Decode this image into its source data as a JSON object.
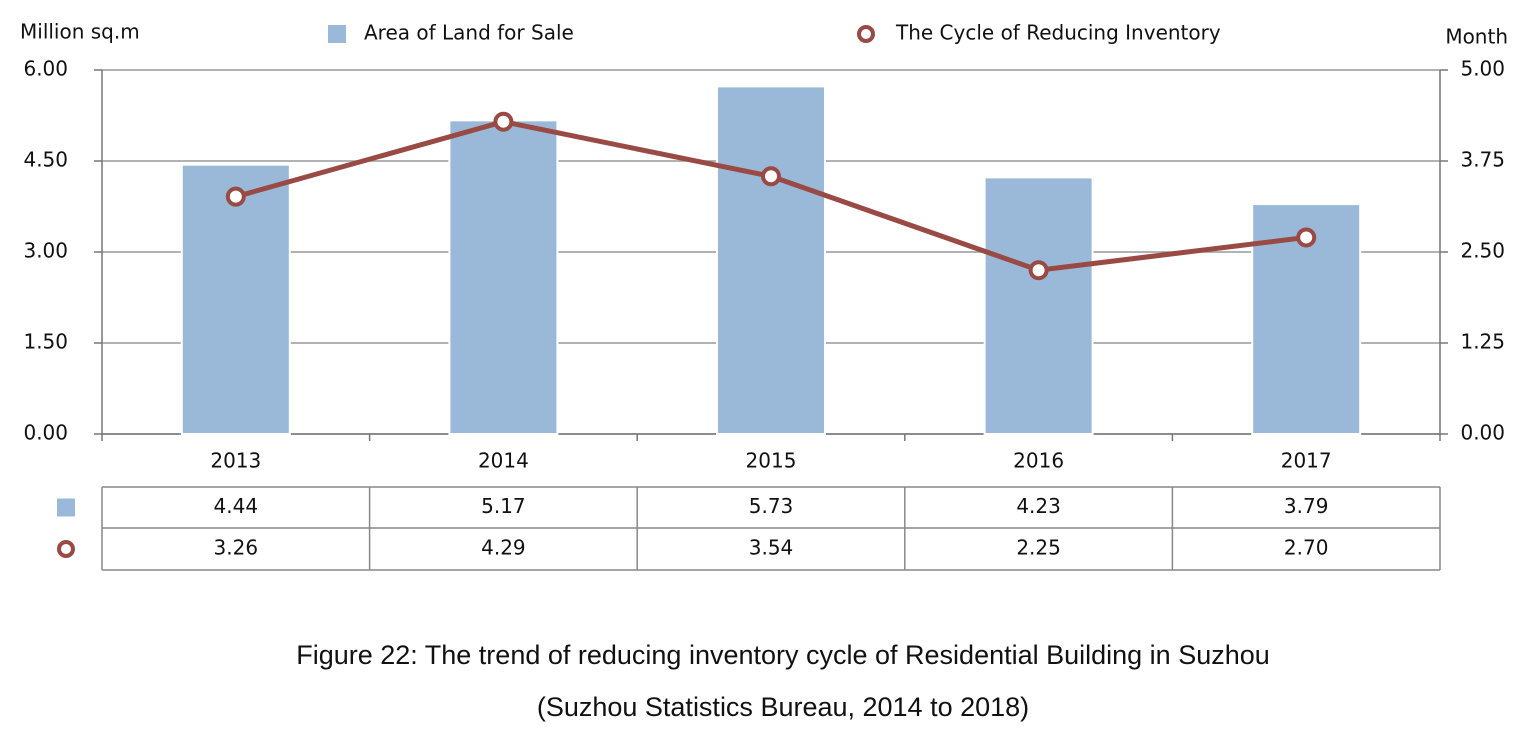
{
  "chart_data": {
    "type": "bar",
    "title": "Figure 22: The trend of reducing inventory cycle of Residential Building in Suzhou",
    "subtitle": "(Suzhou Statistics Bureau, 2014 to 2018)",
    "ylabel": "Million sq.m",
    "y2label": "Month",
    "categories": [
      "2013",
      "2014",
      "2015",
      "2016",
      "2017"
    ],
    "series": [
      {
        "name": "Area of Land for Sale",
        "type": "bar",
        "color": "#9ab9d9",
        "values": [
          4.44,
          5.17,
          5.73,
          4.23,
          3.79
        ],
        "value_labels": [
          "4.44",
          "5.17",
          "5.73",
          "4.23",
          "3.79"
        ]
      },
      {
        "name": "The Cycle of Reducing Inventory",
        "type": "line",
        "axis": "y2",
        "color": "#9a4a44",
        "values": [
          3.26,
          4.29,
          3.54,
          2.25,
          2.7
        ],
        "value_labels": [
          "3.26",
          "4.29",
          "3.54",
          "2.25",
          "2.70"
        ]
      }
    ],
    "ylim": [
      0,
      6
    ],
    "yticks": [
      {
        "value": 0,
        "label": "0.00"
      },
      {
        "value": 1.5,
        "label": "1.50"
      },
      {
        "value": 3,
        "label": "3.00"
      },
      {
        "value": 4.5,
        "label": "4.50"
      },
      {
        "value": 6,
        "label": "6.00"
      }
    ],
    "y2lim": [
      0,
      5
    ],
    "y2ticks": [
      {
        "value": 0,
        "label": "0.00"
      },
      {
        "value": 1.25,
        "label": "1.25"
      },
      {
        "value": 2.5,
        "label": "2.50"
      },
      {
        "value": 3.75,
        "label": "3.75"
      },
      {
        "value": 5,
        "label": "5.00"
      }
    ],
    "grid": true
  }
}
